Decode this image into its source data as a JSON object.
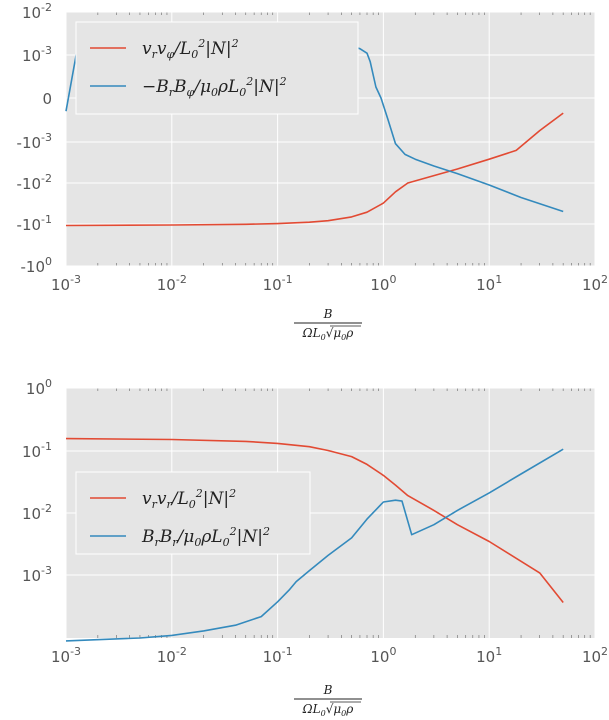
{
  "chart_data": [
    {
      "type": "line",
      "xscale": "log",
      "yscale": "symlog",
      "xlim": [
        0.001,
        100
      ],
      "ylim": [
        -1,
        0.01
      ],
      "grid": true,
      "legend_position": "upper-left",
      "xticks": [
        "10-3",
        "10-2",
        "10-1",
        "100",
        "101",
        "102"
      ],
      "yticks": [
        "10-2",
        "10-3",
        "0",
        "-10-3",
        "-10-2",
        "-10-1",
        "-100"
      ],
      "xlabel": "B / (Ω L0 √(μ0 ρ))",
      "series": [
        {
          "name": "v_r v_φ / L0² |N|²",
          "label_parts": [
            "v",
            "r",
            "v",
            "φ",
            "/L",
            "0",
            "2",
            "|N|",
            "2"
          ],
          "color": "#e24a33",
          "x": [
            0.001,
            0.01,
            0.05,
            0.1,
            0.2,
            0.3,
            0.5,
            0.7,
            1.0,
            1.3,
            1.7,
            3,
            5,
            10,
            18,
            30,
            50
          ],
          "y": [
            -0.105,
            -0.102,
            -0.098,
            -0.094,
            -0.087,
            -0.08,
            -0.065,
            -0.05,
            -0.03,
            -0.016,
            -0.0098,
            -0.0065,
            -0.0045,
            -0.0026,
            -0.0016,
            -0.00055,
            -0.00022
          ]
        },
        {
          "name": "−B_r B_φ / μ0 ρ L0² |N|²",
          "label_parts": [
            "−B",
            "r",
            "B",
            "φ",
            "/μ",
            "0",
            "ρL",
            "0",
            "2",
            "|N|",
            "2"
          ],
          "color": "#348abd",
          "x": [
            0.001,
            0.0013,
            0.3,
            0.5,
            0.6,
            0.7,
            0.75,
            0.85,
            0.95,
            1.1,
            1.3,
            1.6,
            2,
            3,
            5,
            10,
            20,
            50
          ],
          "y": [
            -0.0002,
            0.0018,
            0.0018,
            0.0016,
            0.0014,
            0.0011,
            0.0007,
            0.00018,
            -3e-05,
            -0.0003,
            -0.0011,
            -0.002,
            -0.0026,
            -0.0038,
            -0.0058,
            -0.011,
            -0.022,
            -0.048
          ]
        }
      ]
    },
    {
      "type": "line",
      "xscale": "log",
      "yscale": "log",
      "xlim": [
        0.001,
        100
      ],
      "ylim": [
        0.0001,
        1
      ],
      "grid": true,
      "legend_position": "center-left",
      "xticks": [
        "10-3",
        "10-2",
        "10-1",
        "100",
        "101",
        "102"
      ],
      "yticks": [
        "100",
        "10-1",
        "10-2",
        "10-3"
      ],
      "xlabel": "B / (Ω L0 √(μ0 ρ))",
      "series": [
        {
          "name": "v_r v_r / L0² |N|²",
          "label_parts": [
            "v",
            "r",
            "v",
            "r",
            "/L",
            "0",
            "2",
            "|N|",
            "2"
          ],
          "color": "#e24a33",
          "x": [
            0.001,
            0.01,
            0.05,
            0.1,
            0.2,
            0.3,
            0.5,
            0.7,
            1.0,
            1.3,
            1.7,
            3,
            5,
            10,
            30,
            50
          ],
          "y": [
            0.155,
            0.15,
            0.14,
            0.13,
            0.115,
            0.1,
            0.08,
            0.06,
            0.04,
            0.028,
            0.019,
            0.011,
            0.0065,
            0.0035,
            0.0011,
            0.00037
          ]
        },
        {
          "name": "B_r B_r / μ0 ρ L0² |N|²",
          "label_parts": [
            "B",
            "r",
            "B",
            "r",
            "/μ",
            "0",
            "ρL",
            "0",
            "2",
            "|N|",
            "2"
          ],
          "color": "#348abd",
          "x": [
            0.001,
            0.005,
            0.01,
            0.02,
            0.04,
            0.07,
            0.1,
            0.13,
            0.15,
            0.2,
            0.3,
            0.5,
            0.7,
            1.0,
            1.3,
            1.5,
            1.85,
            3,
            5,
            10,
            20,
            50
          ],
          "y": [
            9e-05,
            0.0001,
            0.00011,
            0.00013,
            0.00016,
            0.00022,
            0.00038,
            0.0006,
            0.0008,
            0.0012,
            0.0021,
            0.004,
            0.008,
            0.015,
            0.016,
            0.0155,
            0.0045,
            0.0065,
            0.011,
            0.021,
            0.042,
            0.105
          ]
        }
      ]
    }
  ]
}
